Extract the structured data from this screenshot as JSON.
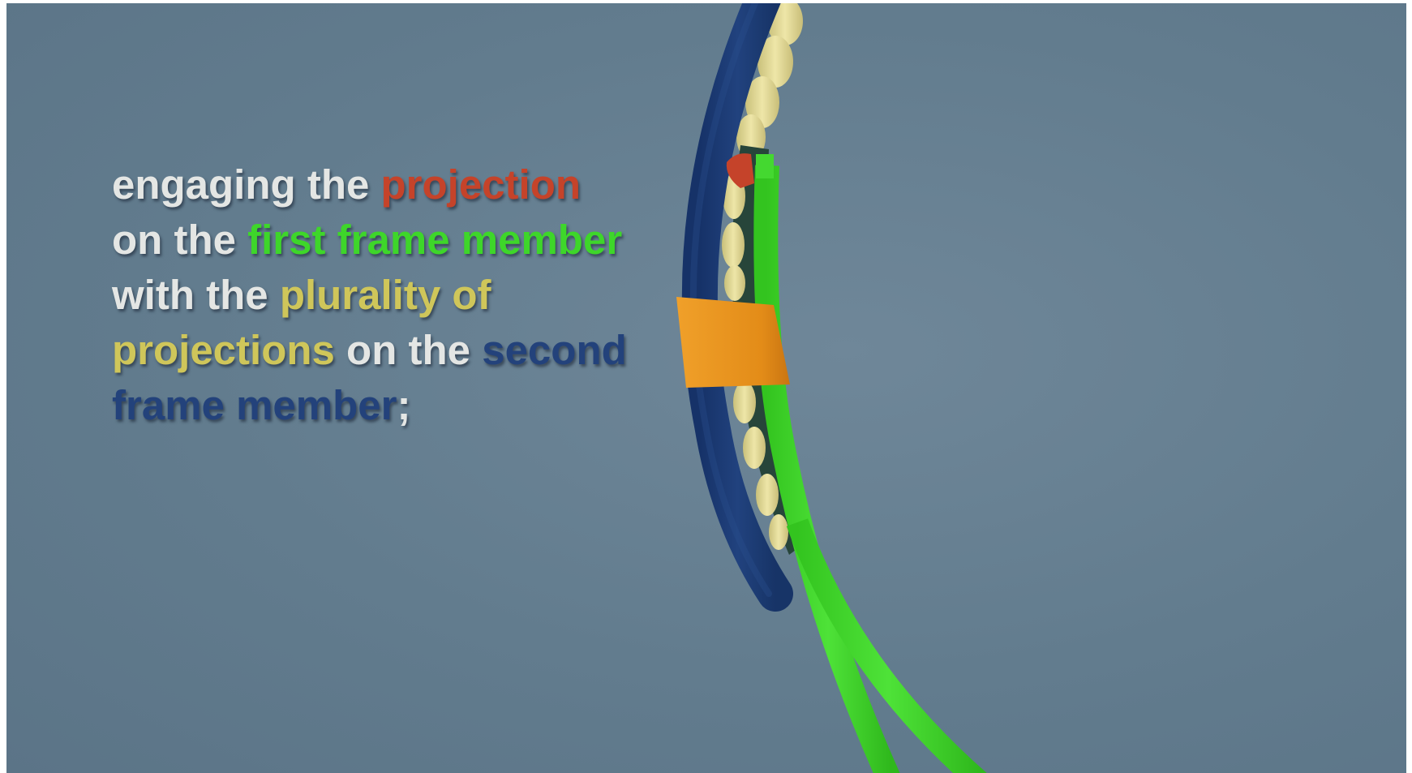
{
  "caption": {
    "lines": [
      [
        {
          "text": "engaging the ",
          "color": "#e4e6e4"
        },
        {
          "text": "projection",
          "color": "#c5432a"
        }
      ],
      [
        {
          "text": "on the ",
          "color": "#e4e6e4"
        },
        {
          "text": "first frame member",
          "color": "#3ed62a"
        }
      ],
      [
        {
          "text": "with the ",
          "color": "#e4e6e4"
        },
        {
          "text": "plurality of",
          "color": "#cfc65a"
        }
      ],
      [
        {
          "text": "projections",
          "color": "#cfc65a"
        },
        {
          "text": " on the ",
          "color": "#e4e6e4"
        },
        {
          "text": "second",
          "color": "#23427b"
        }
      ],
      [
        {
          "text": "frame member",
          "color": "#23427b"
        },
        {
          "text": ";",
          "color": "#e4e6e4"
        }
      ]
    ]
  },
  "colors": {
    "background": "#627c8e",
    "second_frame_member": "#1c3a74",
    "first_frame_member": "#3ed62a",
    "projection": "#c5432a",
    "plurality_of_projections": "#e6dd9a",
    "clip": "#e8901c"
  }
}
